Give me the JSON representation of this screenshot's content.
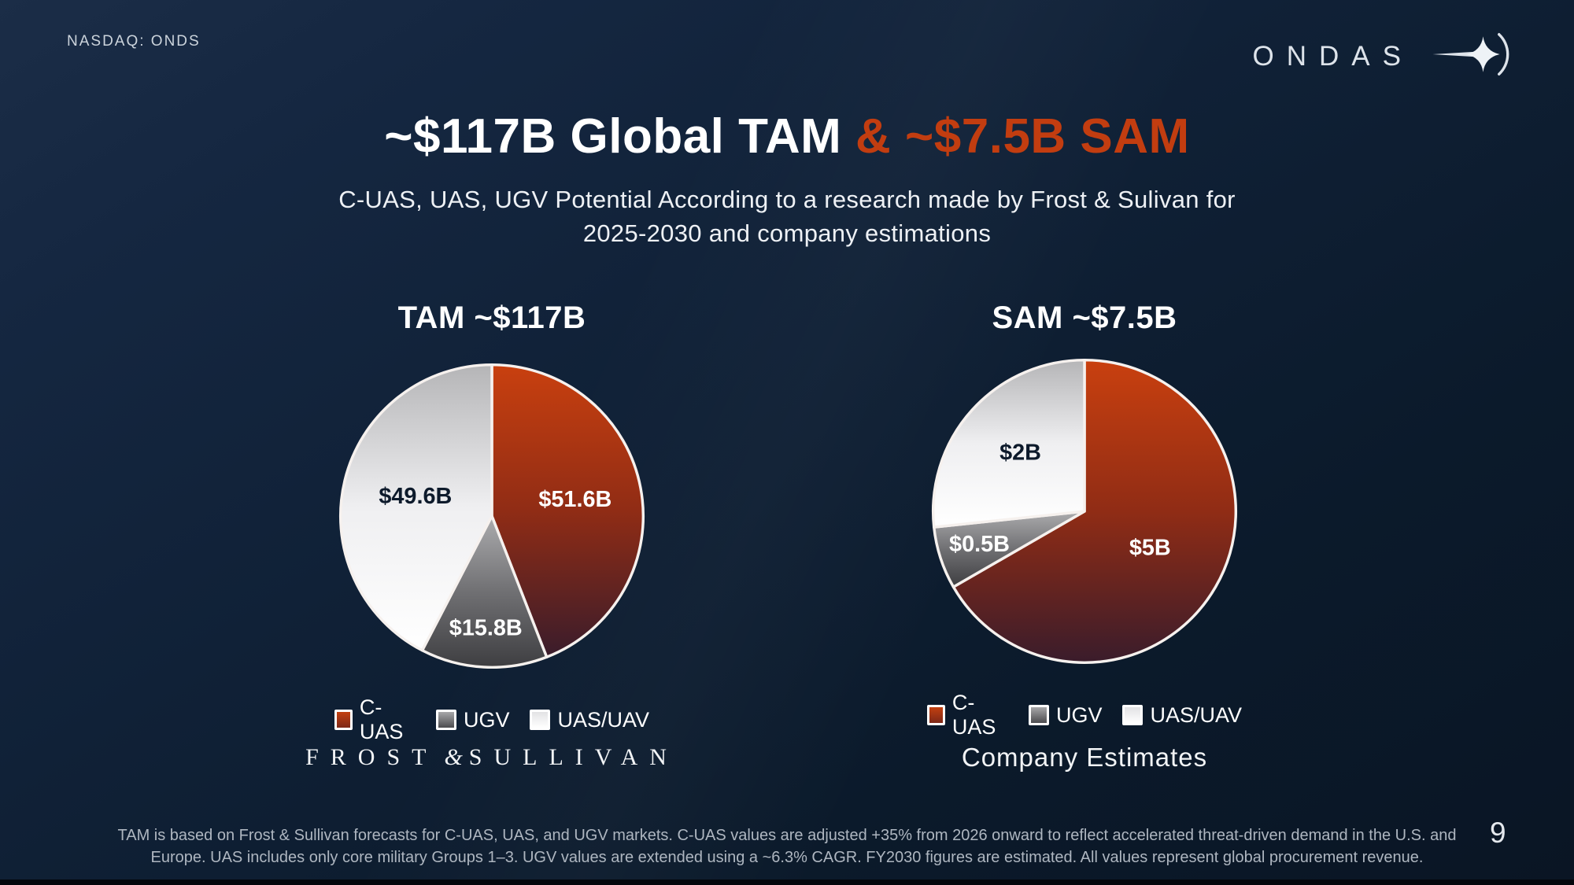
{
  "header": {
    "ticker": "NASDAQ: ONDS",
    "brand": "ONDAS"
  },
  "title": {
    "white": "~$117B Global TAM",
    "accent": "& ~$7.5B SAM"
  },
  "subtitle": {
    "line1": "C-UAS, UAS, UGV Potential According to a research made by Frost & Sulivan for",
    "line2": "2025-2030 and company estimations"
  },
  "legend": {
    "items": [
      {
        "key": "c_uas",
        "label": "C-UAS"
      },
      {
        "key": "ugv",
        "label": "UGV"
      },
      {
        "key": "uas_uav",
        "label": "UAS/UAV"
      }
    ]
  },
  "sources": {
    "tam": {
      "w1": "FROST",
      "amp": "&",
      "w2": "SULLIVAN"
    },
    "sam": "Company Estimates"
  },
  "footnote": {
    "line1": "TAM is based on Frost & Sullivan forecasts for C-UAS, UAS, and UGV markets. C-UAS values are adjusted +35% from 2026 onward to reflect accelerated threat-driven demand in the U.S. and",
    "line2": "Europe. UAS includes only core military Groups 1–3. UGV values are extended using a ~6.3% CAGR. FY2030 figures are estimated. All values represent global procurement revenue."
  },
  "page_number": "9",
  "colors": {
    "accent": "#C23D10",
    "background_top": "#16273F",
    "background_bottom": "#0A1524",
    "pie_stroke": "#F6F1EE",
    "slice_label_dark": "#0D1A2B",
    "slice_label_light": "#FFFFFF",
    "gradients": {
      "c_uas": [
        "#C9400F",
        "#902C15",
        "#3A1C2B"
      ],
      "ugv": [
        "#ACACAE",
        "#707073",
        "#3E3E41"
      ],
      "uas_uav": [
        "#B5B5B7",
        "#EFEFF1",
        "#FFFFFF"
      ]
    }
  },
  "chart_data": [
    {
      "type": "pie",
      "title": "TAM ~$117B",
      "unit": "USD billions",
      "categories": [
        "C-UAS",
        "UGV",
        "UAS/UAV"
      ],
      "values": [
        51.6,
        15.8,
        49.6
      ],
      "value_labels": [
        "$51.6B",
        "$15.8B",
        "$49.6B"
      ],
      "slice_keys": [
        "c_uas",
        "ugv",
        "uas_uav"
      ],
      "label_r": [
        0.56,
        0.75,
        0.52
      ],
      "label_dark": [
        false,
        false,
        true
      ],
      "start_angle_deg": 0,
      "direction": "clockwise",
      "source": "Frost & Sullivan"
    },
    {
      "type": "pie",
      "title": "SAM ~$7.5B",
      "unit": "USD billions",
      "categories": [
        "C-UAS",
        "UGV",
        "UAS/UAV"
      ],
      "values": [
        5,
        0.5,
        2
      ],
      "value_labels": [
        "$5B",
        "$0.5B",
        "$2B"
      ],
      "slice_keys": [
        "c_uas",
        "ugv",
        "uas_uav"
      ],
      "label_r": [
        0.5,
        0.73,
        0.57
      ],
      "label_dark": [
        false,
        false,
        true
      ],
      "start_angle_deg": 0,
      "direction": "clockwise",
      "source": "Company Estimates"
    }
  ]
}
